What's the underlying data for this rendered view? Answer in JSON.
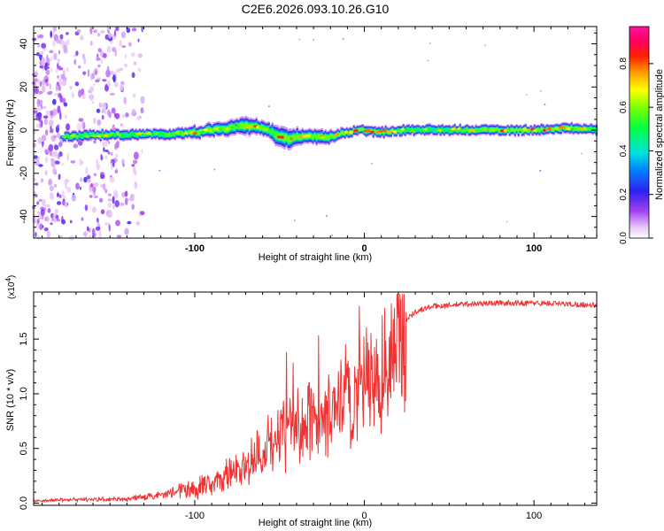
{
  "figure": {
    "title": "C2E6.2026.093.10.26.G10"
  },
  "colors": {
    "snr_line": "#ee3333",
    "axis": "#000000",
    "background": "#ffffff"
  },
  "chart_data": [
    {
      "type": "heatmap",
      "xlabel": "Height of straight line (km)",
      "ylabel": "Frequency (Hz)",
      "xlim": [
        -195,
        137
      ],
      "ylim": [
        -50,
        48
      ],
      "x_ticks": [
        "-100",
        "0",
        "100"
      ],
      "x_tick_values": [
        -100,
        0,
        100
      ],
      "y_ticks": [
        "-40",
        "-20",
        "0",
        "20",
        "40"
      ],
      "y_tick_values": [
        -40,
        -20,
        0,
        20,
        40
      ],
      "colorbar": {
        "label": "Normalized spectral amplitude",
        "range": [
          0,
          0.97
        ],
        "ticks": [
          "0.0",
          "0.2",
          "0.4",
          "0.6",
          "0.8"
        ],
        "tick_values": [
          0.0,
          0.2,
          0.4,
          0.6,
          0.8
        ],
        "colormap": "rainbow (white-purple-blue-cyan-green-yellow-red-magenta)"
      },
      "ridge": {
        "description_points_x": [
          -175,
          -150,
          -120,
          -100,
          -80,
          -70,
          -60,
          -55,
          -50,
          -45,
          -40,
          -30,
          -20,
          -10,
          -5,
          0,
          10,
          20,
          40,
          60,
          80,
          100,
          120,
          137
        ],
        "frequency_hz": [
          -3,
          -2,
          -2,
          -1,
          1,
          2,
          1,
          -1,
          -3,
          -4,
          -3,
          -3,
          -3,
          -1,
          0,
          0,
          -1,
          0,
          0,
          0,
          0,
          0,
          1,
          0
        ],
        "peak_amplitude": [
          0.75,
          0.7,
          0.7,
          0.8,
          0.8,
          0.9,
          0.8,
          0.7,
          0.85,
          0.85,
          0.8,
          0.85,
          0.9,
          0.75,
          0.95,
          0.9,
          0.9,
          0.7,
          0.7,
          0.7,
          0.9,
          0.95,
          0.85,
          0.7
        ],
        "width_hz": [
          5,
          5,
          5,
          6,
          7,
          8,
          7,
          8,
          10,
          9,
          8,
          7,
          6,
          5,
          5,
          5,
          5,
          5,
          5,
          5,
          5,
          5,
          5,
          5
        ]
      },
      "noise_region_x": [
        -195,
        -130
      ]
    },
    {
      "type": "line",
      "xlabel": "Height of straight line (km)",
      "ylabel": "SNR (10 * v/v)",
      "y_multiplier": "(x10",
      "y_multiplier_exp": "4",
      "y_multiplier_close": ")",
      "xlim": [
        -195,
        137
      ],
      "ylim": [
        -0.02,
        1.93
      ],
      "x_ticks": [
        "-100",
        "0",
        "100"
      ],
      "x_tick_values": [
        -100,
        0,
        100
      ],
      "y_ticks": [
        "0.0",
        "0.5",
        "1.0",
        "1.5"
      ],
      "y_tick_values": [
        0.0,
        0.5,
        1.0,
        1.5
      ],
      "series": [
        {
          "envelope_x": [
            -195,
            -180,
            -160,
            -140,
            -130,
            -120,
            -110,
            -100,
            -90,
            -80,
            -70,
            -60,
            -50,
            -40,
            -30,
            -20,
            -10,
            0,
            10,
            20,
            25,
            30,
            40,
            60,
            80,
            100,
            120,
            137
          ],
          "envelope_y": [
            0.02,
            0.03,
            0.04,
            0.04,
            0.06,
            0.08,
            0.12,
            0.15,
            0.2,
            0.28,
            0.38,
            0.5,
            0.65,
            0.75,
            0.85,
            0.9,
            1.0,
            1.15,
            1.3,
            1.55,
            1.68,
            1.75,
            1.8,
            1.82,
            1.83,
            1.83,
            1.82,
            1.81
          ],
          "spike_peaks": [
            {
              "x": -46,
              "y": 1.38
            },
            {
              "x": -42,
              "y": 1.28
            },
            {
              "x": -27,
              "y": 1.53
            },
            {
              "x": -23,
              "y": 1.02
            },
            {
              "x": -15,
              "y": 0.95
            },
            {
              "x": -11,
              "y": 1.45
            },
            {
              "x": -3,
              "y": 1.8
            },
            {
              "x": 12,
              "y": 1.78
            },
            {
              "x": 17,
              "y": 1.68
            }
          ]
        }
      ]
    }
  ]
}
